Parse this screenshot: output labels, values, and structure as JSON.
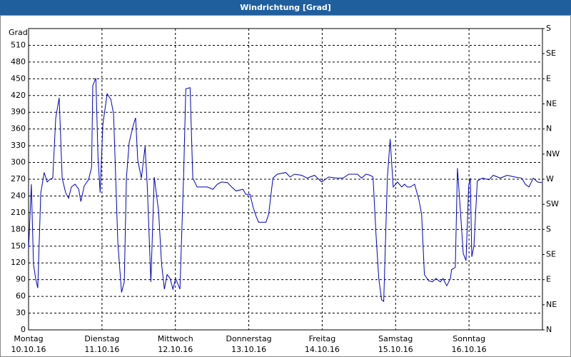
{
  "chart_data": {
    "type": "line",
    "title": "Windrichtung [Grad]",
    "y_label": "Grad",
    "x": [
      0,
      0.9,
      1.6,
      2.3,
      3.0,
      4.0,
      5.1,
      6.1,
      7.0,
      7.9,
      8.9,
      10.0,
      11.0,
      12.1,
      13.1,
      14.0,
      15.2,
      16.4,
      17.1,
      18.2,
      19.6,
      20.6,
      21.0,
      22.0,
      22.7,
      23.4,
      24.3,
      25.7,
      26.9,
      27.8,
      28.5,
      29.2,
      30.4,
      31.3,
      32.0,
      32.9,
      34.3,
      35.0,
      35.7,
      36.9,
      38.1,
      38.8,
      40.0,
      41.1,
      42.5,
      43.5,
      44.4,
      45.3,
      46.3,
      47.2,
      48.1,
      49.5,
      50.7,
      51.4,
      52.8,
      53.7,
      55.1,
      58.4,
      60.3,
      61.7,
      63.1,
      65.0,
      66.4,
      67.8,
      70.1,
      71.0,
      72.4,
      73.4,
      74.3,
      75.2,
      77.6,
      78.5,
      79.9,
      81.3,
      84.1,
      85.5,
      86.9,
      89.3,
      91.1,
      93.5,
      95.8,
      98.1,
      100.5,
      102.8,
      104.7,
      107.5,
      108.9,
      110.3,
      111.7,
      112.6,
      113.6,
      114.5,
      115.4,
      116.1,
      117.3,
      118.2,
      119.2,
      120.6,
      122.0,
      122.9,
      123.8,
      124.8,
      126.2,
      127.6,
      128.5,
      129.4,
      130.8,
      132.0,
      133.2,
      134.6,
      135.5,
      136.7,
      137.9,
      138.3,
      139.5,
      140.2,
      141.1,
      142.1,
      143.0,
      143.9,
      144.4,
      144.9,
      145.6,
      146.7,
      148.4,
      150.5,
      151.9,
      154.2,
      156.5,
      158.9,
      161.2,
      162.4,
      163.6,
      165.0,
      166.4,
      167.8
    ],
    "series": [
      {
        "name": "Windrichtung",
        "color": "#0000c8",
        "values": [
          143,
          261,
          118,
          92,
          75,
          245,
          282,
          265,
          270,
          272,
          380,
          416,
          272,
          246,
          236,
          256,
          261,
          252,
          230,
          258,
          269,
          291,
          438,
          451,
          310,
          246,
          368,
          423,
          413,
          387,
          272,
          156,
          67,
          86,
          272,
          336,
          368,
          380,
          304,
          272,
          329,
          258,
          86,
          274,
          214,
          118,
          73,
          99,
          92,
          73,
          92,
          73,
          278,
          432,
          434,
          272,
          256,
          256,
          252,
          261,
          265,
          264,
          256,
          249,
          252,
          243,
          243,
          220,
          205,
          193,
          193,
          207,
          272,
          279,
          282,
          274,
          279,
          277,
          272,
          277,
          265,
          274,
          272,
          272,
          279,
          279,
          272,
          279,
          277,
          274,
          169,
          92,
          54,
          51,
          272,
          342,
          256,
          265,
          256,
          261,
          256,
          256,
          261,
          233,
          207,
          99,
          88,
          86,
          92,
          86,
          92,
          79,
          92,
          108,
          112,
          290,
          220,
          137,
          124,
          259,
          272,
          131,
          150,
          267,
          272,
          269,
          277,
          272,
          277,
          274,
          272,
          261,
          256,
          272,
          265,
          264
        ]
      }
    ],
    "xlim": [
      0,
      168
    ],
    "xticks": [
      {
        "value": 0,
        "label": "Montag",
        "date": "10.10.16"
      },
      {
        "value": 24,
        "label": "Dienstag",
        "date": "11.10.16"
      },
      {
        "value": 48,
        "label": "Mittwoch",
        "date": "12.10.16"
      },
      {
        "value": 72,
        "label": "Donnerstag",
        "date": "13.10.16"
      },
      {
        "value": 96,
        "label": "Freitag",
        "date": "14.10.16"
      },
      {
        "value": 120,
        "label": "Samstag",
        "date": "15.10.16"
      },
      {
        "value": 144,
        "label": "Sonntag",
        "date": "16.10.16"
      }
    ],
    "ylim": [
      0,
      540
    ],
    "yticks": [
      0,
      30,
      60,
      90,
      120,
      150,
      180,
      210,
      240,
      270,
      300,
      330,
      360,
      390,
      420,
      450,
      480,
      510
    ],
    "y2lim": [
      0,
      540
    ],
    "y2ticks": [
      {
        "value": 0,
        "label": "N"
      },
      {
        "value": 45,
        "label": "NE"
      },
      {
        "value": 90,
        "label": "E"
      },
      {
        "value": 135,
        "label": "SE"
      },
      {
        "value": 180,
        "label": "S"
      },
      {
        "value": 225,
        "label": "SW"
      },
      {
        "value": 270,
        "label": "W"
      },
      {
        "value": 315,
        "label": "NW"
      },
      {
        "value": 360,
        "label": "N"
      },
      {
        "value": 405,
        "label": "NE"
      },
      {
        "value": 450,
        "label": "E"
      },
      {
        "value": 495,
        "label": "SE"
      },
      {
        "value": 540,
        "label": "S"
      }
    ],
    "grid": true
  }
}
